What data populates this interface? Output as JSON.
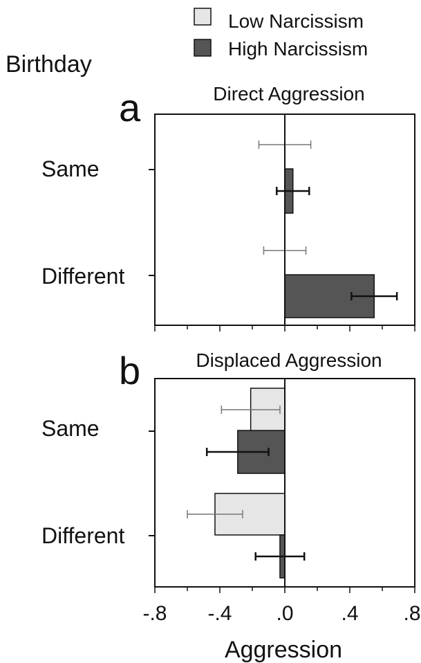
{
  "figure": {
    "row_heading": "Birthday",
    "xlabel": "Aggression"
  },
  "legend": {
    "items": [
      {
        "label": "Low Narcissism",
        "color": "#e6e6e6"
      },
      {
        "label": "High Narcissism",
        "color": "#555555"
      }
    ]
  },
  "chart_data": [
    {
      "type": "bar",
      "orientation": "horizontal",
      "panel_letter": "a",
      "title": "Direct Aggression",
      "categories": [
        "Same",
        "Different"
      ],
      "xlim": [
        -0.8,
        0.8
      ],
      "xticks": [
        "-.8",
        "-.4",
        ".0",
        ".4",
        ".8"
      ],
      "series": [
        {
          "name": "Low Narcissism",
          "color": "#e6e6e6",
          "values": [
            0.0,
            0.0
          ],
          "error": [
            0.16,
            0.13
          ]
        },
        {
          "name": "High Narcissism",
          "color": "#555555",
          "values": [
            0.05,
            0.55
          ],
          "error": [
            0.1,
            0.14
          ]
        }
      ]
    },
    {
      "type": "bar",
      "orientation": "horizontal",
      "panel_letter": "b",
      "title": "Displaced Aggression",
      "categories": [
        "Same",
        "Different"
      ],
      "xlim": [
        -0.8,
        0.8
      ],
      "xticks": [
        "-.8",
        "-.4",
        ".0",
        ".4",
        ".8"
      ],
      "series": [
        {
          "name": "Low Narcissism",
          "color": "#e6e6e6",
          "values": [
            -0.21,
            -0.43
          ],
          "error": [
            0.18,
            0.17
          ]
        },
        {
          "name": "High Narcissism",
          "color": "#555555",
          "values": [
            -0.29,
            -0.03
          ],
          "error": [
            0.19,
            0.15
          ]
        }
      ]
    }
  ]
}
